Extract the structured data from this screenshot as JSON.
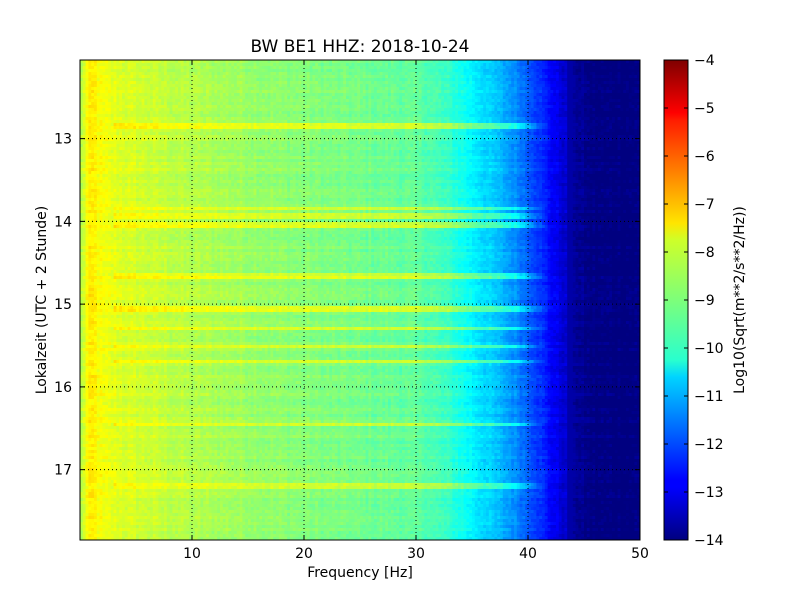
{
  "chart_data": {
    "type": "heatmap",
    "title": "BW BE1 HHZ: 2018-10-24",
    "xlabel": "Frequency [Hz]",
    "ylabel": "Lokalzeit (UTC + 2 Stunde)",
    "xlim": [
      0,
      50
    ],
    "ylim": [
      12.05,
      17.85
    ],
    "x_ticks": [
      {
        "value": 10,
        "label": "10"
      },
      {
        "value": 20,
        "label": "20"
      },
      {
        "value": 30,
        "label": "30"
      },
      {
        "value": 40,
        "label": "40"
      },
      {
        "value": 50,
        "label": "50"
      }
    ],
    "y_ticks": [
      {
        "value": 13,
        "label": "13"
      },
      {
        "value": 14,
        "label": "14"
      },
      {
        "value": 15,
        "label": "15"
      },
      {
        "value": 16,
        "label": "16"
      },
      {
        "value": 17,
        "label": "17"
      }
    ],
    "grid": true,
    "colormap": "jet",
    "colorbar": {
      "label": "Log10(Sqrt(m**2/s**2/Hz))",
      "range": [
        -14,
        -4
      ],
      "ticks": [
        {
          "value": -4,
          "label": "−4"
        },
        {
          "value": -5,
          "label": "−5"
        },
        {
          "value": -6,
          "label": "−6"
        },
        {
          "value": -7,
          "label": "−7"
        },
        {
          "value": -8,
          "label": "−8"
        },
        {
          "value": -9,
          "label": "−9"
        },
        {
          "value": -10,
          "label": "−10"
        },
        {
          "value": -11,
          "label": "−11"
        },
        {
          "value": -12,
          "label": "−12"
        },
        {
          "value": -13,
          "label": "−13"
        },
        {
          "value": -14,
          "label": "−14"
        }
      ]
    },
    "spectrum_profile": {
      "frequency": [
        0,
        0.7,
        1.2,
        2,
        4,
        7,
        10,
        14,
        18,
        22,
        26,
        29,
        31,
        33,
        35,
        37,
        39,
        40.5,
        42,
        43.5,
        44.5,
        46,
        50
      ],
      "log_amplitude": [
        -8.6,
        -7.7,
        -7.6,
        -7.9,
        -8.1,
        -8.3,
        -8.5,
        -8.65,
        -8.85,
        -9.0,
        -9.15,
        -9.25,
        -9.4,
        -9.75,
        -10.3,
        -10.8,
        -11.4,
        -12.0,
        -12.7,
        -13.3,
        -13.8,
        -14,
        -14
      ]
    },
    "transient_lines": [
      12.86,
      13.84,
      13.93,
      14.04,
      14.66,
      15.07,
      15.29,
      15.51,
      15.69,
      16.45,
      17.19
    ],
    "transient_peak_frequency_hz": 39
  }
}
